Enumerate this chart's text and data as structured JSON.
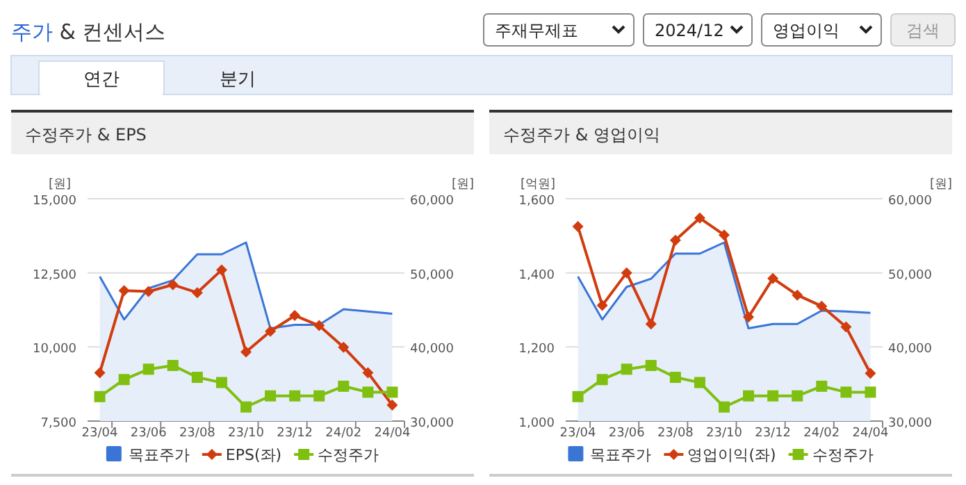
{
  "chart_data": [
    {
      "type": "other",
      "title": "주가 & 컨센서스",
      "annotations": [
        "주재무제표",
        "2024/12",
        "영업이익",
        "검색",
        "연간",
        "분기"
      ]
    },
    {
      "type": "line",
      "title": "수정주가 & EPS",
      "ylabel": "[원]",
      "y2label": "[원]",
      "categories": [
        "23/04",
        null,
        "23/06",
        null,
        "23/08",
        null,
        "23/10",
        null,
        "23/12",
        null,
        "24/02",
        null,
        "24/04"
      ],
      "series": [
        {
          "name": "목표주가",
          "type": "area",
          "axis": "y2",
          "marker": "none",
          "color": "#3a75d6",
          "values": [
            49500,
            43700,
            47900,
            49000,
            52500,
            52500,
            54100,
            42500,
            43000,
            43000,
            45100,
            44800,
            44500
          ]
        },
        {
          "name": "EPS(좌)",
          "type": "line",
          "axis": "y",
          "marker": "diamond",
          "color": "#d13c0e",
          "values": [
            9130,
            11900,
            11870,
            12100,
            11830,
            12600,
            9830,
            10530,
            11060,
            10720,
            9990,
            9130,
            8040
          ]
        },
        {
          "name": "수정주가",
          "type": "line",
          "axis": "y2",
          "marker": "square",
          "color": "#7fbf10",
          "values": [
            33300,
            35600,
            37000,
            37500,
            35900,
            35200,
            31900,
            33400,
            33400,
            33400,
            34700,
            33900,
            33900
          ]
        }
      ],
      "ylim": [
        7500,
        15000
      ],
      "yticks": [
        {
          "value": 7500,
          "label": "7,500"
        },
        {
          "value": 10000,
          "label": "10,000"
        },
        {
          "value": 12500,
          "label": "12,500"
        },
        {
          "value": 15000,
          "label": "15,000"
        }
      ],
      "y2lim": [
        30000,
        60000
      ],
      "y2ticks": [
        {
          "value": 30000,
          "label": "30,000"
        },
        {
          "value": 40000,
          "label": "40,000"
        },
        {
          "value": 50000,
          "label": "50,000"
        },
        {
          "value": 60000,
          "label": "60,000"
        }
      ],
      "grid": "y",
      "legend": "bottom"
    },
    {
      "type": "line",
      "title": "수정주가 & 영업이익",
      "ylabel": "[억원]",
      "y2label": "[원]",
      "categories": [
        "23/04",
        null,
        "23/06",
        null,
        "23/08",
        null,
        "23/10",
        null,
        "23/12",
        null,
        "24/02",
        null,
        "24/04"
      ],
      "series": [
        {
          "name": "목표주가",
          "type": "area",
          "axis": "y2",
          "marker": "none",
          "color": "#3a75d6",
          "values": [
            49500,
            43700,
            48100,
            49200,
            52600,
            52600,
            54100,
            42500,
            43100,
            43100,
            44900,
            44800,
            44600
          ]
        },
        {
          "name": "영업이익(좌)",
          "type": "line",
          "axis": "y",
          "marker": "diamond",
          "color": "#d13c0e",
          "values": [
            1525,
            1312,
            1400,
            1262,
            1488,
            1548,
            1502,
            1281,
            1385,
            1340,
            1310,
            1254,
            1129
          ]
        },
        {
          "name": "수정주가",
          "type": "line",
          "axis": "y2",
          "marker": "square",
          "color": "#7fbf10",
          "values": [
            33300,
            35600,
            37000,
            37500,
            35900,
            35200,
            31900,
            33400,
            33400,
            33400,
            34700,
            33900,
            33900
          ]
        }
      ],
      "ylim": [
        1000,
        1600
      ],
      "yticks": [
        {
          "value": 1000,
          "label": "1,000"
        },
        {
          "value": 1200,
          "label": "1,200"
        },
        {
          "value": 1400,
          "label": "1,400"
        },
        {
          "value": 1600,
          "label": "1,600"
        }
      ],
      "y2lim": [
        30000,
        60000
      ],
      "y2ticks": [
        {
          "value": 30000,
          "label": "30,000"
        },
        {
          "value": 40000,
          "label": "40,000"
        },
        {
          "value": 50000,
          "label": "50,000"
        },
        {
          "value": 60000,
          "label": "60,000"
        }
      ],
      "grid": "y",
      "legend": "bottom"
    }
  ]
}
